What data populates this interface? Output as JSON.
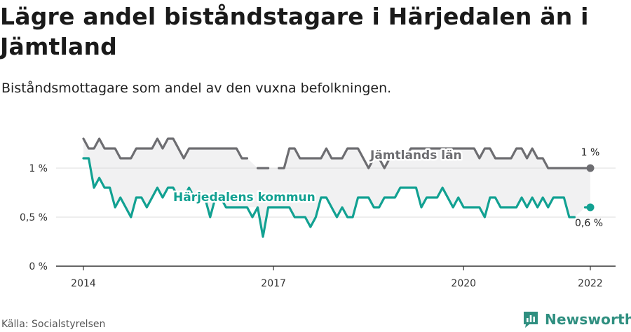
{
  "title": "Lägre andel biståndstagare i Härjedalen än i Jämtland",
  "subtitle": "Biståndsmottagare som andel av den vuxna befolkningen.",
  "source": "Källa: Socialstyrelsen",
  "brand": {
    "name": "Newsworthy",
    "logo_icon": "newsworthy-logo-icon"
  },
  "colors": {
    "jamtland": "#6d6d71",
    "harjedalen": "#12a192",
    "band": "#f1f1f2",
    "grid": "#dcdcdc",
    "axis": "#333333",
    "brand": "#2f8f80"
  },
  "chart_data": {
    "type": "line",
    "x_unit": "month",
    "x_start": "2014-01",
    "x_end": "2022-01",
    "xticks": [
      {
        "value": "2014-01",
        "label": "2014"
      },
      {
        "value": "2017-01",
        "label": "2017"
      },
      {
        "value": "2020-01",
        "label": "2020"
      },
      {
        "value": "2022-01",
        "label": "2022"
      }
    ],
    "ylim": [
      0,
      1.4
    ],
    "yticks": [
      {
        "value": 0,
        "label": "0 %"
      },
      {
        "value": 0.5,
        "label": "0,5 %"
      },
      {
        "value": 1,
        "label": "1 %"
      }
    ],
    "grid": true,
    "series": [
      {
        "name": "Jämtlands län",
        "key": "jamtland",
        "end_label": "1 %",
        "values": [
          1.3,
          1.2,
          1.2,
          1.3,
          1.2,
          1.2,
          1.2,
          1.1,
          1.1,
          1.1,
          1.2,
          1.2,
          1.2,
          1.2,
          1.3,
          1.2,
          1.3,
          1.3,
          1.2,
          1.1,
          1.2,
          1.2,
          1.2,
          1.2,
          1.2,
          1.2,
          1.2,
          1.2,
          1.2,
          1.2,
          1.1,
          1.1,
          null,
          1.0,
          1.0,
          1.0,
          null,
          1.0,
          1.0,
          1.2,
          1.2,
          1.1,
          1.1,
          1.1,
          1.1,
          1.1,
          1.2,
          1.1,
          1.1,
          1.1,
          1.2,
          1.2,
          1.2,
          1.1,
          1.0,
          1.1,
          1.1,
          1.0,
          1.1,
          1.1,
          1.1,
          1.1,
          1.2,
          1.2,
          1.2,
          1.2,
          1.2,
          1.2,
          1.2,
          1.2,
          1.2,
          1.2,
          1.2,
          1.2,
          1.2,
          1.1,
          1.2,
          1.2,
          1.1,
          1.1,
          1.1,
          1.1,
          1.2,
          1.2,
          1.1,
          1.2,
          1.1,
          1.1,
          1.0,
          1.0,
          1.0,
          1.0,
          1.0,
          1.0,
          1.0,
          1.0,
          1.0
        ]
      },
      {
        "name": "Härjedalens kommun",
        "key": "harjedalen",
        "end_label": "0,6 %",
        "values": [
          1.1,
          1.1,
          0.8,
          0.9,
          0.8,
          0.8,
          0.6,
          0.7,
          0.6,
          0.5,
          0.7,
          0.7,
          0.6,
          0.7,
          0.8,
          0.7,
          0.8,
          0.8,
          0.7,
          0.7,
          0.8,
          0.7,
          0.7,
          0.7,
          0.5,
          0.7,
          0.7,
          0.6,
          0.6,
          0.6,
          0.6,
          0.6,
          0.5,
          0.6,
          0.3,
          0.6,
          0.6,
          0.6,
          0.6,
          0.6,
          0.5,
          0.5,
          0.5,
          0.4,
          0.5,
          0.7,
          0.7,
          0.6,
          0.5,
          0.6,
          0.5,
          0.5,
          0.7,
          0.7,
          0.7,
          0.6,
          0.6,
          0.7,
          0.7,
          0.7,
          0.8,
          0.8,
          0.8,
          0.8,
          0.6,
          0.7,
          0.7,
          0.7,
          0.8,
          0.7,
          0.6,
          0.7,
          0.6,
          0.6,
          0.6,
          0.6,
          0.5,
          0.7,
          0.7,
          0.6,
          0.6,
          0.6,
          0.6,
          0.7,
          0.6,
          0.7,
          0.6,
          0.7,
          0.6,
          0.7,
          0.7,
          0.7,
          0.5,
          0.5,
          null,
          0.6,
          0.6
        ]
      }
    ]
  }
}
